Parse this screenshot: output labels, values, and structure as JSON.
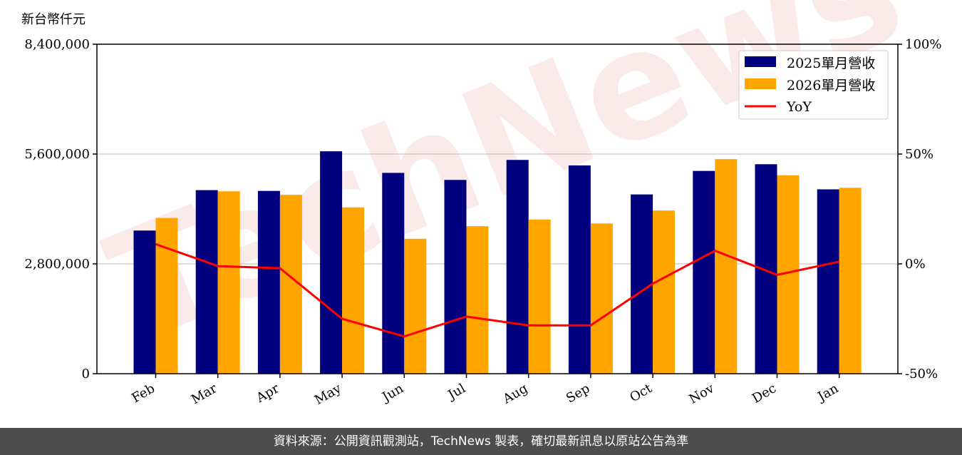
{
  "chart_data": {
    "type": "bar",
    "unit_label": "新台幣仟元",
    "categories": [
      "Feb",
      "Mar",
      "Apr",
      "May",
      "Jun",
      "Jul",
      "Aug",
      "Sep",
      "Oct",
      "Nov",
      "Dec",
      "Jan"
    ],
    "series": [
      {
        "name": "2025單月營收",
        "color": "#00007f",
        "values": [
          3650000,
          4680000,
          4660000,
          5670000,
          5120000,
          4940000,
          5450000,
          5310000,
          4570000,
          5170000,
          5340000,
          4700000
        ]
      },
      {
        "name": "2026單月營收",
        "color": "#ffa500",
        "values": [
          3970000,
          4650000,
          4560000,
          4240000,
          3440000,
          3760000,
          3930000,
          3830000,
          4160000,
          5470000,
          5060000,
          4740000
        ]
      }
    ],
    "line_series": {
      "name": "YoY",
      "color": "#ff0000",
      "axis": "right",
      "values": [
        9,
        -1,
        -2,
        -25,
        -33,
        -24,
        -28,
        -28,
        -9,
        6,
        -5,
        1
      ]
    },
    "y_left": {
      "min": 0,
      "max": 8400000,
      "ticks": [
        0,
        2800000,
        5600000,
        8400000
      ],
      "tick_labels": [
        "0",
        "2,800,000",
        "5,600,000",
        "8,400,000"
      ]
    },
    "y_right": {
      "min": -50,
      "max": 100,
      "ticks": [
        -50,
        0,
        50,
        100
      ],
      "tick_labels": [
        "-50%",
        "0%",
        "50%",
        "100%"
      ]
    },
    "grid": "horizontal",
    "legend_position": "top-right"
  },
  "watermark": "TechNews",
  "footer": {
    "text": "資料來源：公開資訊觀測站，TechNews 製表，確切最新訊息以原站公告為準"
  }
}
